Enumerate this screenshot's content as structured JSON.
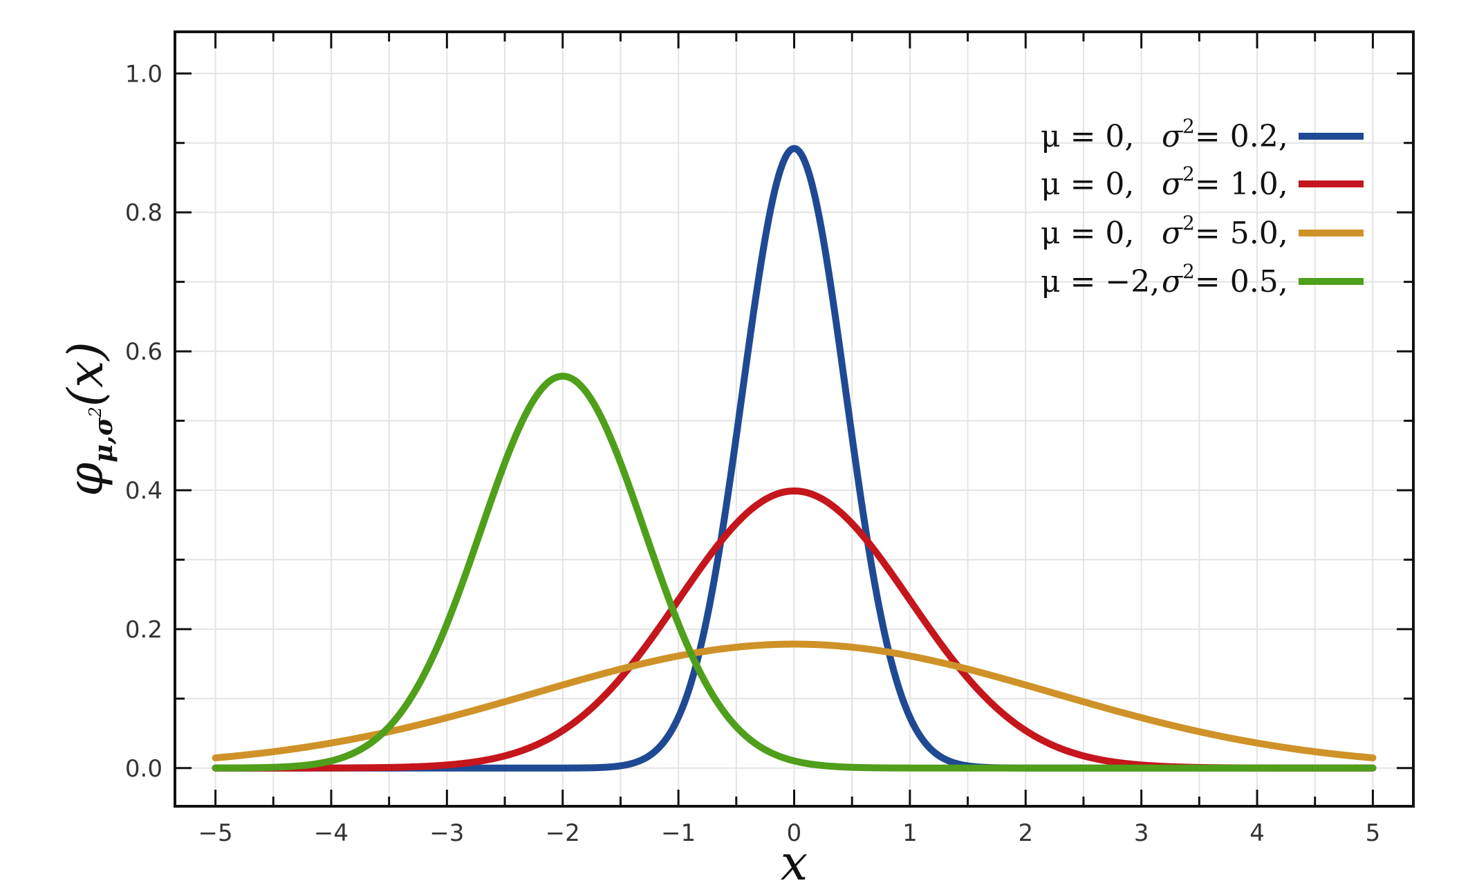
{
  "chart_data": {
    "type": "line",
    "x": {
      "label": "x",
      "range": [
        -5.35,
        5.35
      ],
      "ticks": [
        -5,
        -4,
        -3,
        -2,
        -1,
        0,
        1,
        2,
        3,
        4,
        5
      ],
      "tick_labels": [
        "−5",
        "−4",
        "−3",
        "−2",
        "−1",
        "0",
        "1",
        "2",
        "3",
        "4",
        "5"
      ]
    },
    "y": {
      "label": {
        "base": "φ",
        "sub": "μ,σ",
        "sup": "2",
        "arg": "(x)"
      },
      "range": [
        -0.055,
        1.06
      ],
      "ticks": [
        0.0,
        0.2,
        0.4,
        0.6,
        0.8,
        1.0
      ],
      "tick_labels": [
        "0.0",
        "0.2",
        "0.4",
        "0.6",
        "0.8",
        "1.0"
      ]
    },
    "grid": true,
    "legend_position": "top-right",
    "series": [
      {
        "mu": 0,
        "sigma2": 0.2,
        "color": "#1f4a93",
        "legend": {
          "mu": "μ = 0,",
          "sigma": "σ",
          "sup": "2",
          "value": "= 0.2,"
        }
      },
      {
        "mu": 0,
        "sigma2": 1.0,
        "color": "#c4161c",
        "legend": {
          "mu": "μ = 0,",
          "sigma": "σ",
          "sup": "2",
          "value": "= 1.0,"
        }
      },
      {
        "mu": 0,
        "sigma2": 5.0,
        "color": "#cf9228",
        "legend": {
          "mu": "μ = 0,",
          "sigma": "σ",
          "sup": "2",
          "value": "= 5.0,"
        }
      },
      {
        "mu": -2,
        "sigma2": 0.5,
        "color": "#4f9f1a",
        "legend": {
          "mu": "μ = −2,",
          "sigma": "σ",
          "sup": "2",
          "value": "= 0.5,"
        }
      }
    ],
    "curve_x_range": [
      -5,
      5
    ]
  }
}
